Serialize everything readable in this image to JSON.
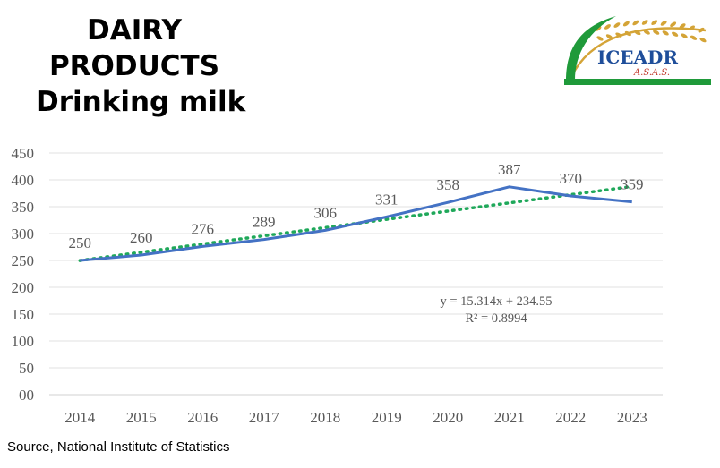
{
  "header": {
    "title_line1": "DAIRY",
    "title_line2": "PRODUCTS",
    "title_line3": "Drinking milk"
  },
  "logo": {
    "name": "ICEADR",
    "sub": "A.S.A.S.",
    "colors": {
      "wheat": "#d4a437",
      "name": "#1f4e9a",
      "bar": "#1f9a3a",
      "sub": "#c0392b"
    }
  },
  "chart_data": {
    "type": "line",
    "x": [
      "2014",
      "2015",
      "2016",
      "2017",
      "2018",
      "2019",
      "2020",
      "2021",
      "2022",
      "2023"
    ],
    "series": [
      {
        "values": [
          250,
          260,
          276,
          289,
          306,
          331,
          358,
          387,
          370,
          359
        ],
        "color": "#4472c4"
      }
    ],
    "data_labels": [
      "250",
      "260",
      "276",
      "289",
      "306",
      "331",
      "358",
      "387",
      "370",
      "359"
    ],
    "trendline": {
      "slope": 15.314,
      "intercept": 234.55,
      "style": "dotted",
      "color": "#1fa85a"
    },
    "trend_equation": "y = 15.314x + 234.55",
    "trend_r2": "R² = 0.8994",
    "ylim": [
      0,
      450
    ],
    "yticks": [
      "00",
      "50",
      "100",
      "150",
      "200",
      "250",
      "300",
      "350",
      "400",
      "450"
    ],
    "grid": true
  },
  "footer": {
    "source": "Source, National Institute of Statistics"
  }
}
